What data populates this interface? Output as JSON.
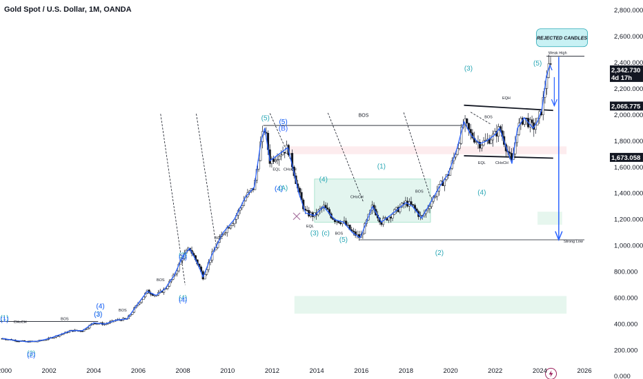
{
  "title": "Gold Spot / U.S. Dollar, 1M, OANDA",
  "colors": {
    "candle": "#2962ff",
    "wick": "#131722",
    "wave_teal": "#26a6b4",
    "wave_blue": "#2962ff",
    "arrow": "#2962ff",
    "callout_fill": "#c8f1f4",
    "callout_stroke": "#26a6b4",
    "callout_text": "#2962ff",
    "zone_green": "#e6f6ee",
    "zone_red": "#fdecee",
    "box_fill": "#e3f5ef",
    "box_stroke": "#9ddfc5",
    "cross": "#a8729f",
    "logo": "#9c1f5b"
  },
  "chart_data": {
    "type": "line",
    "x_axis": {
      "min": 1999.8,
      "max": 2026.4,
      "ticks": [
        "2000",
        "2002",
        "2004",
        "2006",
        "2008",
        "2010",
        "2012",
        "2014",
        "2016",
        "2018",
        "2020",
        "2022",
        "2024",
        "2026"
      ]
    },
    "y_axis": {
      "min": -20,
      "max": 2880,
      "ticks": [
        "0.000",
        "200.000",
        "400.000",
        "600.000",
        "800.000",
        "1,000.000",
        "1,200.000",
        "1,400.000",
        "1,600.000",
        "1,800.000",
        "2,000.000",
        "2,200.000",
        "2,400.000",
        "2,600.000",
        "2,800.000"
      ]
    },
    "series": [
      {
        "x": [
          1999.9,
          2000.5,
          2001.0,
          2001.5,
          2002.0,
          2002.5,
          2003.0,
          2003.5,
          2004.0,
          2004.5,
          2005.0,
          2005.5,
          2006.0,
          2006.4,
          2006.8,
          2007.2,
          2007.6,
          2008.0,
          2008.3,
          2008.7,
          2008.9,
          2009.3,
          2009.8,
          2010.3,
          2010.8,
          2011.2,
          2011.5,
          2011.67,
          2011.9,
          2012.3,
          2012.7,
          2012.9,
          2013.2,
          2013.5,
          2013.9,
          2014.3,
          2014.8,
          2015.2,
          2015.6,
          2015.95,
          2016.5,
          2016.9,
          2017.5,
          2018.0,
          2018.3,
          2018.7,
          2019.0,
          2019.5,
          2019.9,
          2020.3,
          2020.6,
          2020.9,
          2021.3,
          2021.6,
          2022.0,
          2022.2,
          2022.5,
          2022.75,
          2023.0,
          2023.3,
          2023.7,
          2023.9,
          2024.1,
          2024.3,
          2024.45,
          2024.55
        ],
        "y": [
          290,
          275,
          265,
          270,
          290,
          320,
          350,
          350,
          410,
          400,
          430,
          440,
          560,
          650,
          620,
          670,
          770,
          920,
          980,
          850,
          760,
          930,
          1100,
          1200,
          1370,
          1450,
          1800,
          1900,
          1650,
          1700,
          1750,
          1620,
          1400,
          1250,
          1230,
          1300,
          1200,
          1180,
          1100,
          1060,
          1300,
          1180,
          1260,
          1330,
          1300,
          1210,
          1300,
          1450,
          1550,
          1750,
          1950,
          1850,
          1780,
          1800,
          1850,
          1900,
          1750,
          1630,
          1900,
          1980,
          1900,
          1950,
          2050,
          2300,
          2380,
          2342.73
        ]
      }
    ],
    "price_labels": [
      {
        "value": 2342.73,
        "text": "2,342.730",
        "sub": "4d 17h"
      },
      {
        "value": 2065.775,
        "text": "2,065.775"
      },
      {
        "value": 1673.058,
        "text": "1,673.058"
      }
    ],
    "levels": {
      "weak_high": 2450,
      "strong_low": 1045,
      "bos": 1920,
      "eqh_high": 2070,
      "eql_low": 1673,
      "choch_left": 420
    },
    "annotations": {
      "wave_labels": [
        "(1)",
        "(1)",
        "(2)",
        "(2)",
        "(3)",
        "(3)",
        "(4)",
        "(4)",
        "(3)",
        "(3)",
        "(4)",
        "(4)",
        "(5)",
        "(5)",
        "(5)",
        "(B)",
        "(4)",
        "(4)",
        "(A)",
        "(4)",
        "(3)",
        "(c)",
        "(5)",
        "(2)",
        "(1)",
        "(3)",
        "(4)",
        "(5)"
      ],
      "small_labels": [
        "CHoCH",
        "BOS",
        "BOS",
        "BOS",
        "BOS",
        "EQL",
        "CHoCH",
        "EQL",
        "BOS",
        "CHoCH",
        "BOS",
        "EQH",
        "EQL",
        "CHoCH",
        "BOS",
        "Weak High",
        "Strong Low"
      ],
      "bos_top_label": "BOS",
      "callout": "REJECTED CANDLES"
    }
  }
}
